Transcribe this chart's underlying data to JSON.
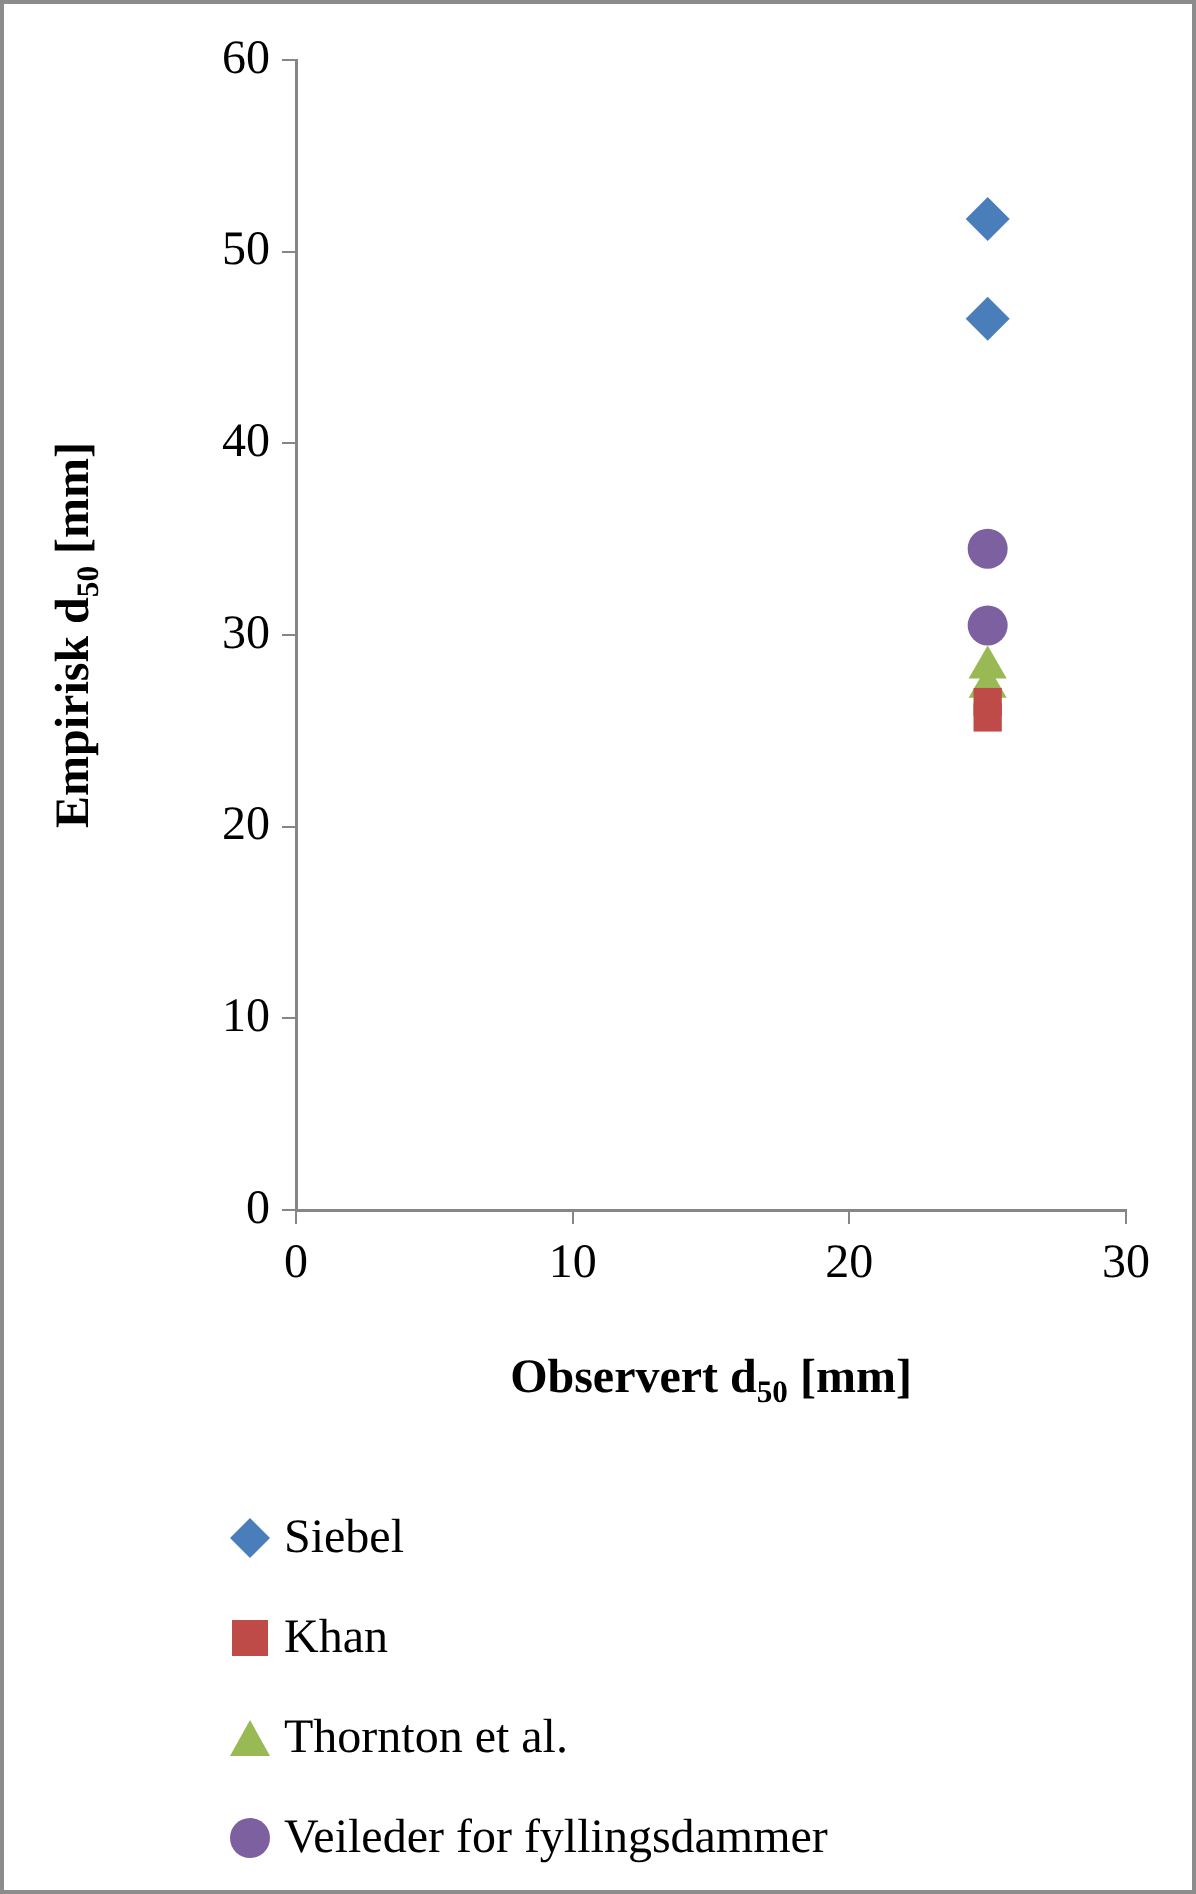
{
  "chart_data": {
    "type": "scatter",
    "xlabel": "Observert d$_{50}$ [mm]",
    "ylabel": "Empirisk d$_{50}$ [mm]",
    "xlim": [
      0,
      30
    ],
    "xticks": [
      0,
      10,
      20,
      30
    ],
    "ylim": [
      0,
      60
    ],
    "yticks": [
      0,
      10,
      20,
      30,
      40,
      50,
      60
    ],
    "grid": false,
    "legend": "bottom",
    "x": [
      25,
      25
    ],
    "series": [
      {
        "name": "Siebel",
        "color": "#4a7ebb",
        "marker": "diamond",
        "values": [
          51.7,
          46.5
        ]
      },
      {
        "name": "Khan",
        "color": "#be4b48",
        "marker": "square",
        "values": [
          26.5,
          25.7
        ]
      },
      {
        "name": "Thornton et al.",
        "color": "#98b954",
        "marker": "triangle",
        "values": [
          28.3,
          27.3
        ]
      },
      {
        "name": "Veileder for fyllingsdammer",
        "color": "#7d60a0",
        "marker": "circle",
        "values": [
          34.5,
          30.5
        ]
      }
    ]
  }
}
